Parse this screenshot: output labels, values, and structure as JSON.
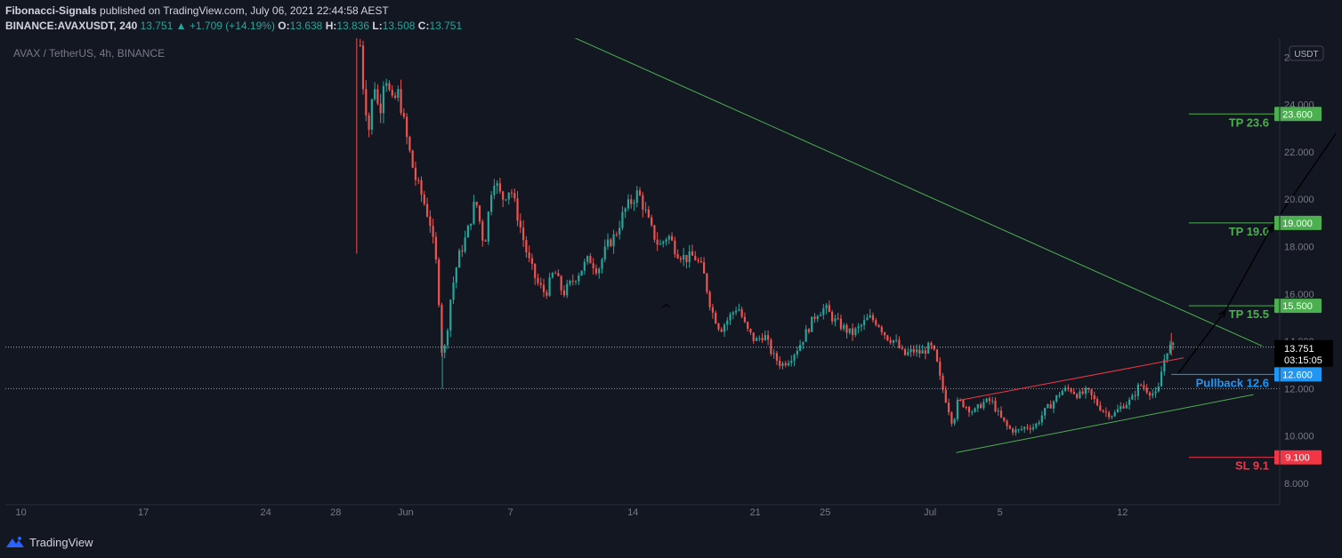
{
  "header": {
    "author": "Fibonacci-Signals",
    "published": " published on TradingView.com, July 06, 2021 22:44:58 AEST",
    "symbol": "BINANCE:AVAXUSDT, 240",
    "last": "13.751",
    "arrow": "▲",
    "change": "+1.709 (+14.19%)",
    "o_label": "O:",
    "o": "13.638",
    "h_label": "H:",
    "h": "13.836",
    "l_label": "L:",
    "l": "13.508",
    "c_label": "C:",
    "c": "13.751"
  },
  "chart_data": {
    "type": "candlestick",
    "title": "AVAX / TetherUS, 4h, BINANCE",
    "currency": "USDT",
    "ylim": [
      7.1,
      26.8
    ],
    "y_ticks": [
      "8.000",
      "10.000",
      "12.000",
      "14.000",
      "16.000",
      "18.000",
      "20.000",
      "22.000",
      "24.000"
    ],
    "y_partial_tick": "2",
    "x_ticks": [
      {
        "label": "10",
        "d": 0
      },
      {
        "label": "17",
        "d": 7
      },
      {
        "label": "24",
        "d": 14
      },
      {
        "label": "28",
        "d": 18
      },
      {
        "label": "Jun",
        "d": 22
      },
      {
        "label": "7",
        "d": 28
      },
      {
        "label": "14",
        "d": 35
      },
      {
        "label": "21",
        "d": 42
      },
      {
        "label": "25",
        "d": 46
      },
      {
        "label": "Jul",
        "d": 52
      },
      {
        "label": "5",
        "d": 56
      },
      {
        "label": "12",
        "d": 63
      }
    ],
    "x_range_days": [
      -0.9,
      72.0
    ],
    "price_path": [
      [
        19.4,
        26.5
      ],
      [
        19.6,
        24.5
      ],
      [
        19.9,
        23.0
      ],
      [
        20.2,
        25.0
      ],
      [
        20.5,
        23.5
      ],
      [
        20.8,
        25.5
      ],
      [
        21.2,
        24.0
      ],
      [
        21.6,
        24.5
      ],
      [
        22.0,
        22.8
      ],
      [
        22.5,
        21.0
      ],
      [
        23.0,
        20.0
      ],
      [
        23.4,
        19.0
      ],
      [
        23.8,
        17.0
      ],
      [
        24.0,
        14.5
      ],
      [
        24.1,
        13.2
      ],
      [
        24.3,
        14.0
      ],
      [
        24.6,
        16.0
      ],
      [
        25.0,
        17.5
      ],
      [
        25.5,
        18.5
      ],
      [
        26.0,
        20.0
      ],
      [
        26.5,
        18.0
      ],
      [
        27.0,
        21.0
      ],
      [
        27.5,
        20.0
      ],
      [
        28.0,
        20.5
      ],
      [
        28.5,
        19.0
      ],
      [
        29.0,
        17.5
      ],
      [
        29.5,
        16.5
      ],
      [
        30.0,
        16.0
      ],
      [
        30.5,
        17.0
      ],
      [
        31.0,
        16.0
      ],
      [
        31.5,
        16.5
      ],
      [
        32.0,
        17.0
      ],
      [
        32.5,
        17.5
      ],
      [
        33.0,
        17.0
      ],
      [
        33.5,
        18.0
      ],
      [
        34.0,
        18.5
      ],
      [
        34.5,
        19.5
      ],
      [
        35.0,
        20.0
      ],
      [
        35.3,
        20.3
      ],
      [
        35.7,
        19.5
      ],
      [
        36.0,
        18.8
      ],
      [
        36.5,
        18.0
      ],
      [
        37.0,
        18.5
      ],
      [
        37.5,
        17.8
      ],
      [
        38.0,
        17.5
      ],
      [
        38.5,
        17.6
      ],
      [
        39.0,
        17.0
      ],
      [
        39.5,
        15.3
      ],
      [
        40.0,
        14.5
      ],
      [
        40.5,
        15.0
      ],
      [
        41.0,
        15.5
      ],
      [
        41.5,
        14.5
      ],
      [
        42.0,
        14.0
      ],
      [
        42.5,
        14.3
      ],
      [
        43.0,
        13.4
      ],
      [
        43.5,
        13.0
      ],
      [
        44.0,
        13.3
      ],
      [
        44.5,
        13.8
      ],
      [
        45.0,
        14.5
      ],
      [
        45.5,
        15.2
      ],
      [
        46.0,
        15.4
      ],
      [
        46.5,
        14.9
      ],
      [
        47.0,
        14.6
      ],
      [
        47.5,
        14.3
      ],
      [
        48.0,
        14.6
      ],
      [
        48.5,
        15.0
      ],
      [
        49.0,
        14.8
      ],
      [
        49.5,
        14.2
      ],
      [
        50.0,
        14.0
      ],
      [
        50.5,
        13.4
      ],
      [
        51.0,
        13.6
      ],
      [
        51.5,
        13.5
      ],
      [
        52.0,
        13.8
      ],
      [
        52.3,
        13.4
      ],
      [
        52.6,
        12.3
      ],
      [
        53.0,
        11.3
      ],
      [
        53.3,
        10.5
      ],
      [
        53.6,
        11.5
      ],
      [
        54.0,
        11.3
      ],
      [
        54.5,
        11.0
      ],
      [
        55.0,
        11.4
      ],
      [
        55.5,
        11.5
      ],
      [
        56.0,
        10.8
      ],
      [
        56.5,
        10.3
      ],
      [
        57.0,
        10.2
      ],
      [
        57.5,
        10.4
      ],
      [
        58.0,
        10.4
      ],
      [
        58.5,
        11.0
      ],
      [
        59.0,
        11.4
      ],
      [
        59.5,
        11.9
      ],
      [
        60.0,
        12.0
      ],
      [
        60.5,
        11.7
      ],
      [
        61.0,
        11.9
      ],
      [
        61.5,
        11.4
      ],
      [
        62.0,
        11.0
      ],
      [
        62.5,
        10.9
      ],
      [
        63.0,
        11.3
      ],
      [
        63.5,
        11.5
      ],
      [
        64.0,
        12.2
      ],
      [
        64.5,
        11.9
      ],
      [
        65.0,
        11.7
      ],
      [
        65.3,
        13.0
      ],
      [
        65.6,
        13.75
      ],
      [
        65.9,
        13.75
      ]
    ],
    "lines": {
      "last_price": "13.751",
      "countdown": "03:15:05",
      "pullback": {
        "label": "Pullback 12.6",
        "value": "12.600",
        "y": 12.6
      },
      "tp1": {
        "label": "TP 15.5",
        "value": "15.500",
        "y": 15.5
      },
      "tp2": {
        "label": "TP 19.0",
        "value": "19.000",
        "y": 19.0
      },
      "tp3": {
        "label": "TP 23.6",
        "value": "23.600",
        "y": 23.6
      },
      "sl": {
        "label": "SL 9.1",
        "value": "9.100",
        "y": 9.1
      },
      "dotted_low": 12.0
    },
    "colors": {
      "up": "#26a69a",
      "down": "#ef5350",
      "green_line": "#4caf50",
      "red_line": "#f23645",
      "blue_line": "#2196f3",
      "background": "#131722",
      "text": "#787b86"
    }
  },
  "footer": {
    "brand": "TradingView"
  }
}
